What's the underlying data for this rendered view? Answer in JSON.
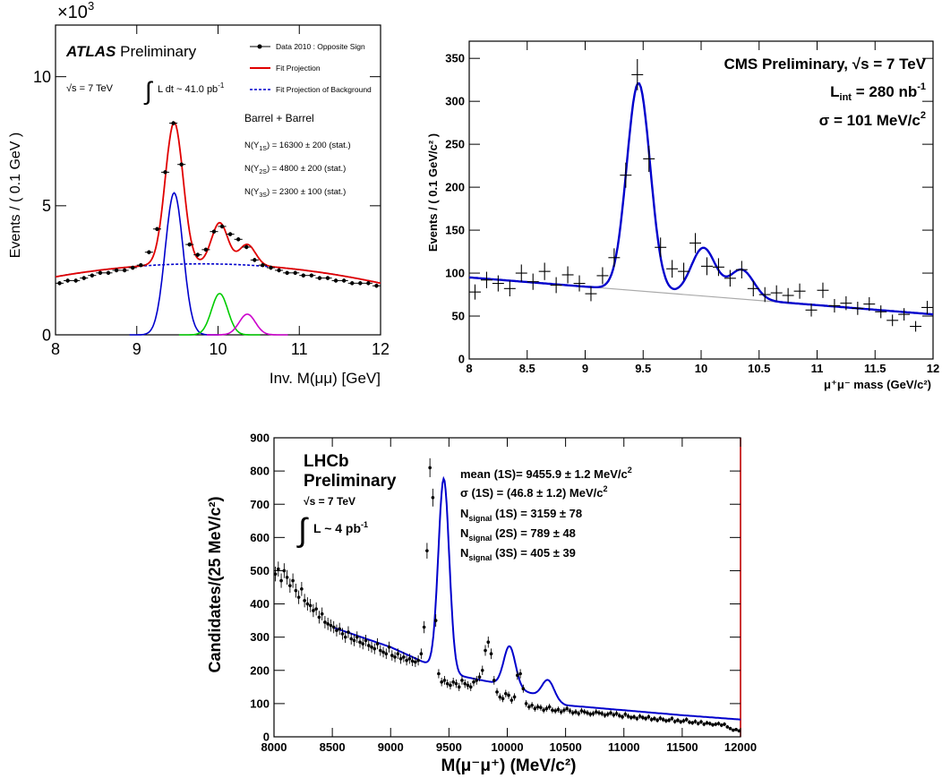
{
  "chart_data": [
    {
      "panel": "ATLAS",
      "type": "scatter",
      "title": "ATLAS Preliminary",
      "title_bold": "ATLAS",
      "title_rest": "Preliminary",
      "sqrt_s": "√s = 7 TeV",
      "lumi": "L dt ~ 41.0 pb",
      "lumi_sup": "-1",
      "selection": "Barrel + Barrel",
      "yields": [
        {
          "pre": "N(Υ",
          "sub": "1S",
          "post": ") = 16300 ± 200 (stat.)"
        },
        {
          "pre": "N(Υ",
          "sub": "2S",
          "post": ") = 4800 ± 200 (stat.)"
        },
        {
          "pre": "N(Υ",
          "sub": "3S",
          "post": ") = 2300 ± 100 (stat.)"
        }
      ],
      "legend": [
        "Data 2010 : Opposite Sign",
        "Fit Projection",
        "Fit Projection of Background"
      ],
      "xlabel": "Inv. M(μμ) [GeV]",
      "ylabel": "Events / ( 0.1 GeV )",
      "y_multiplier": "×10",
      "y_multiplier_exp": "3",
      "xlim": [
        8,
        12
      ],
      "ylim": [
        0,
        12
      ],
      "xticks": [
        8,
        9,
        10,
        11,
        12
      ],
      "yticks": [
        0,
        5,
        10
      ],
      "x_unit": "GeV",
      "y_unit": "thousand events per 0.1 GeV",
      "data": {
        "x": [
          8.05,
          8.15,
          8.25,
          8.35,
          8.45,
          8.55,
          8.65,
          8.75,
          8.85,
          8.95,
          9.05,
          9.15,
          9.25,
          9.35,
          9.45,
          9.55,
          9.65,
          9.75,
          9.85,
          9.95,
          10.05,
          10.15,
          10.25,
          10.35,
          10.45,
          10.55,
          10.65,
          10.75,
          10.85,
          10.95,
          11.05,
          11.15,
          11.25,
          11.35,
          11.45,
          11.55,
          11.65,
          11.75,
          11.85,
          11.95
        ],
        "y": [
          2.0,
          2.1,
          2.1,
          2.2,
          2.3,
          2.4,
          2.4,
          2.5,
          2.5,
          2.6,
          2.7,
          3.2,
          4.1,
          6.3,
          8.2,
          6.6,
          3.5,
          3.1,
          3.3,
          4.0,
          4.2,
          3.9,
          3.7,
          3.4,
          2.9,
          2.7,
          2.6,
          2.5,
          2.4,
          2.4,
          2.3,
          2.3,
          2.2,
          2.2,
          2.1,
          2.1,
          2.0,
          2.0,
          2.0,
          1.9
        ]
      },
      "signal_peaks": [
        {
          "name": "1S",
          "mean": 9.46,
          "sigma": 0.11,
          "amplitude": 5.5,
          "color": "#0000cc"
        },
        {
          "name": "2S",
          "mean": 10.02,
          "sigma": 0.1,
          "amplitude": 1.6,
          "color": "#00cc00"
        },
        {
          "name": "3S",
          "mean": 10.36,
          "sigma": 0.1,
          "amplitude": 0.8,
          "color": "#cc00cc"
        }
      ],
      "colors": {
        "data": "#000000",
        "fit": "#e00000",
        "background": "#0000cc"
      }
    },
    {
      "panel": "CMS",
      "type": "scatter",
      "title": "CMS Preliminary, √s = 7 TeV",
      "lumi_label": "L",
      "lumi_sub": "int",
      "lumi_value": " = 280 nb",
      "lumi_sup": "-1",
      "resolution_label": "σ = 101 MeV/c",
      "resolution_sup": "2",
      "xlabel": "μ⁺μ⁻ mass (GeV/c²)",
      "ylabel": "Events / ( 0.1 GeV/c² )",
      "xlim": [
        8,
        12
      ],
      "ylim": [
        0,
        370
      ],
      "xticks": [
        8,
        8.5,
        9,
        9.5,
        10,
        10.5,
        11,
        11.5,
        12
      ],
      "yticks": [
        0,
        50,
        100,
        150,
        200,
        250,
        300,
        350
      ],
      "x_unit": "GeV/c²",
      "data": {
        "x": [
          8.05,
          8.15,
          8.25,
          8.35,
          8.45,
          8.55,
          8.65,
          8.75,
          8.85,
          8.95,
          9.05,
          9.15,
          9.25,
          9.35,
          9.45,
          9.55,
          9.65,
          9.75,
          9.85,
          9.95,
          10.05,
          10.15,
          10.25,
          10.35,
          10.45,
          10.55,
          10.65,
          10.75,
          10.85,
          10.95,
          11.05,
          11.15,
          11.25,
          11.35,
          11.45,
          11.55,
          11.65,
          11.75,
          11.85,
          11.95
        ],
        "y": [
          78,
          92,
          88,
          82,
          100,
          90,
          102,
          86,
          98,
          88,
          76,
          97,
          118,
          214,
          331,
          233,
          130,
          105,
          102,
          135,
          108,
          107,
          94,
          104,
          82,
          75,
          77,
          74,
          79,
          57,
          80,
          62,
          65,
          59,
          64,
          55,
          45,
          52,
          38,
          60
        ]
      },
      "signal_peaks": [
        {
          "name": "1S",
          "mean": 9.46,
          "sigma": 0.101,
          "amplitude": 242
        },
        {
          "name": "2S",
          "mean": 10.02,
          "sigma": 0.105,
          "amplitude": 56
        },
        {
          "name": "3S",
          "mean": 10.35,
          "sigma": 0.105,
          "amplitude": 34
        }
      ],
      "background_line": {
        "x": [
          8,
          12
        ],
        "y": [
          95,
          52
        ]
      },
      "colors": {
        "data": "#000000",
        "fit": "#0000cc",
        "background": "#aaaaaa"
      }
    },
    {
      "panel": "LHCb",
      "type": "scatter",
      "title_lines": [
        "LHCb",
        "Preliminary"
      ],
      "sqrt_s": "√s = 7 TeV",
      "lumi": "L ~ 4 pb",
      "lumi_sup": "-1",
      "fit_results": [
        {
          "label": "mean (1S)= 9455.9 ±   1.2 MeV/c",
          "sup": "2"
        },
        {
          "label": "σ (1S) =   (46.8 ± 1.2) MeV/c",
          "sup": "2"
        },
        {
          "pre": "N",
          "sub": "signal",
          "post": " (1S) =  3159 ± 78"
        },
        {
          "pre": "N",
          "sub": "signal",
          "post": " (2S) =   789 ± 48"
        },
        {
          "pre": "N",
          "sub": "signal",
          "post": " (3S) =   405 ± 39"
        }
      ],
      "xlabel": "M(μ⁻μ⁺) (MeV/c²)",
      "ylabel": "Candidates/(25 MeV/c²)",
      "xlim": [
        8000,
        12000
      ],
      "ylim": [
        0,
        900
      ],
      "xticks": [
        8000,
        8500,
        9000,
        9500,
        10000,
        10500,
        11000,
        11500,
        12000
      ],
      "yticks": [
        0,
        100,
        200,
        300,
        400,
        500,
        600,
        700,
        800,
        900
      ],
      "x_unit": "MeV/c²",
      "data": {
        "x": [
          8012,
          8037,
          8062,
          8087,
          8112,
          8137,
          8162,
          8187,
          8212,
          8237,
          8262,
          8287,
          8312,
          8337,
          8362,
          8387,
          8412,
          8437,
          8462,
          8487,
          8512,
          8537,
          8562,
          8587,
          8612,
          8637,
          8662,
          8687,
          8712,
          8737,
          8762,
          8787,
          8812,
          8837,
          8862,
          8887,
          8912,
          8937,
          8962,
          8987,
          9012,
          9037,
          9062,
          9087,
          9112,
          9137,
          9162,
          9187,
          9212,
          9237,
          9262,
          9287,
          9312,
          9337,
          9362,
          9387,
          9412,
          9437,
          9462,
          9487,
          9512,
          9537,
          9562,
          9587,
          9612,
          9637,
          9662,
          9687,
          9712,
          9737,
          9762,
          9787,
          9812,
          9837,
          9862,
          9887,
          9912,
          9937,
          9962,
          9987,
          10012,
          10037,
          10062,
          10087,
          10112,
          10137,
          10162,
          10187,
          10212,
          10237,
          10262,
          10287,
          10312,
          10337,
          10362,
          10387,
          10412,
          10437,
          10462,
          10487,
          10512,
          10537,
          10562,
          10587,
          10612,
          10637,
          10662,
          10687,
          10712,
          10737,
          10762,
          10787,
          10812,
          10837,
          10862,
          10887,
          10912,
          10937,
          10962,
          10987,
          11012,
          11037,
          11062,
          11087,
          11112,
          11137,
          11162,
          11187,
          11212,
          11237,
          11262,
          11287,
          11312,
          11337,
          11362,
          11387,
          11412,
          11437,
          11462,
          11487,
          11512,
          11537,
          11562,
          11587,
          11612,
          11637,
          11662,
          11687,
          11712,
          11737,
          11762,
          11787,
          11812,
          11837,
          11862,
          11887,
          11912,
          11937,
          11962,
          11987
        ],
        "y": [
          490,
          505,
          470,
          500,
          480,
          455,
          470,
          440,
          420,
          445,
          410,
          400,
          395,
          380,
          385,
          360,
          370,
          345,
          340,
          335,
          330,
          320,
          325,
          310,
          300,
          315,
          295,
          290,
          300,
          285,
          280,
          290,
          275,
          270,
          265,
          280,
          260,
          255,
          250,
          270,
          245,
          240,
          250,
          235,
          240,
          230,
          235,
          228,
          225,
          230,
          250,
          330,
          560,
          810,
          720,
          350,
          190,
          165,
          170,
          160,
          155,
          165,
          160,
          150,
          170,
          160,
          155,
          150,
          165,
          170,
          180,
          200,
          260,
          285,
          250,
          170,
          135,
          120,
          115,
          130,
          125,
          110,
          120,
          185,
          190,
          145,
          100,
          90,
          95,
          85,
          90,
          88,
          80,
          85,
          90,
          80,
          78,
          82,
          75,
          80,
          85,
          78,
          72,
          75,
          70,
          78,
          75,
          72,
          68,
          70,
          75,
          72,
          70,
          65,
          68,
          72,
          66,
          70,
          64,
          60,
          68,
          62,
          58,
          60,
          55,
          62,
          58,
          55,
          60,
          52,
          55,
          50,
          56,
          52,
          48,
          50,
          55,
          46,
          50,
          45,
          48,
          52,
          44,
          42,
          46,
          40,
          45,
          38,
          42,
          40,
          36,
          38,
          40,
          35,
          38,
          30,
          25,
          20,
          22,
          18
        ]
      },
      "signal_peaks": [
        {
          "name": "1S",
          "mean": 9455.9,
          "sigma": 46.8,
          "amplitude": 580
        },
        {
          "name": "2S",
          "mean": 10020,
          "sigma": 50,
          "amplitude": 120
        },
        {
          "name": "3S",
          "mean": 10350,
          "sigma": 52,
          "amplitude": 58
        }
      ],
      "background_curve": {
        "x": [
          8500,
          9000,
          9500,
          10000,
          10500,
          11000,
          11500,
          12000
        ],
        "y": [
          330,
          270,
          190,
          155,
          95,
          80,
          65,
          52
        ]
      },
      "colors": {
        "data": "#000000",
        "fit": "#0000cc",
        "frame_right": "#cc0000"
      }
    }
  ]
}
